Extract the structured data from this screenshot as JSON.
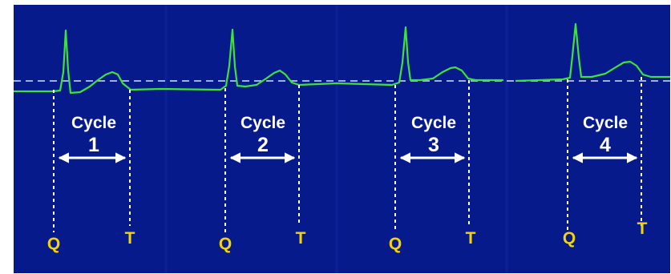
{
  "colors": {
    "background": "#061a8c",
    "panel_seam": "#0a2296",
    "trace": "#3fe23a",
    "baseline": "#9fb0d8",
    "marker_line": "#ffffff",
    "cycle_text": "#ffffff",
    "q_label": "#f5d400",
    "t_label": "#f5d400"
  },
  "cycles": [
    {
      "word": "Cycle",
      "number": "1",
      "start_label": "Q",
      "end_label": "T"
    },
    {
      "word": "Cycle",
      "number": "2",
      "start_label": "Q",
      "end_label": "T"
    },
    {
      "word": "Cycle",
      "number": "3",
      "start_label": "Q",
      "end_label": "T"
    },
    {
      "word": "Cycle",
      "number": "4",
      "start_label": "Q",
      "end_label": "T"
    }
  ]
}
